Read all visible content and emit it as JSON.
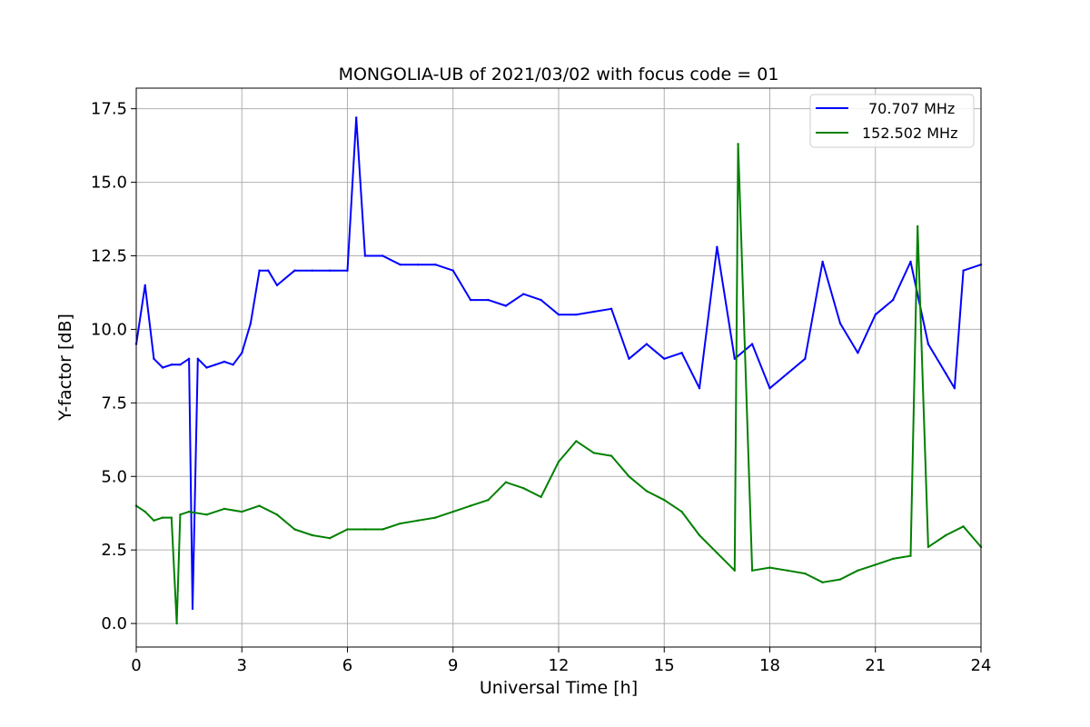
{
  "chart_data": {
    "type": "line",
    "title": "MONGOLIA-UB of 2021/03/02 with focus code = 01",
    "xlabel": "Universal Time [h]",
    "ylabel": "Y-factor [dB]",
    "xlim": [
      0,
      24
    ],
    "ylim": [
      -0.8,
      18.2
    ],
    "xticks": [
      0,
      3,
      6,
      9,
      12,
      15,
      18,
      21,
      24
    ],
    "xtick_labels": [
      "0",
      "3",
      "6",
      "9",
      "12",
      "15",
      "18",
      "21",
      "24"
    ],
    "yticks": [
      0,
      2.5,
      5,
      7.5,
      10,
      12.5,
      15,
      17.5
    ],
    "ytick_labels": [
      "0.0",
      "2.5",
      "5.0",
      "7.5",
      "10.0",
      "12.5",
      "15.0",
      "17.5"
    ],
    "grid": true,
    "legend_position": "top-right",
    "series": [
      {
        "name": "70.707 MHz",
        "color": "#0000ff",
        "x": [
          0,
          0.25,
          0.5,
          0.75,
          1.0,
          1.25,
          1.5,
          1.6,
          1.75,
          2.0,
          2.25,
          2.5,
          2.75,
          3.0,
          3.25,
          3.5,
          3.75,
          4.0,
          4.5,
          5.0,
          5.5,
          6.0,
          6.25,
          6.5,
          7.0,
          7.5,
          8.0,
          8.5,
          9.0,
          9.5,
          10.0,
          10.5,
          11.0,
          11.5,
          12.0,
          12.5,
          13.0,
          13.5,
          14.0,
          14.5,
          15.0,
          15.5,
          16.0,
          16.5,
          17.0,
          17.5,
          18.0,
          18.5,
          19.0,
          19.5,
          20.0,
          20.5,
          21.0,
          21.5,
          22.0,
          22.5,
          23.0,
          23.25,
          23.5,
          24.0
        ],
        "y": [
          9.5,
          11.5,
          9.0,
          8.7,
          8.8,
          8.8,
          9.0,
          0.5,
          9.0,
          8.7,
          8.8,
          8.9,
          8.8,
          9.2,
          10.2,
          12.0,
          12.0,
          11.5,
          12.0,
          12.0,
          12.0,
          12.0,
          17.2,
          12.5,
          12.5,
          12.2,
          12.2,
          12.2,
          12.0,
          11.0,
          11.0,
          10.8,
          11.2,
          11.0,
          10.5,
          10.5,
          10.6,
          10.7,
          9.0,
          9.5,
          9.0,
          9.2,
          8.0,
          12.8,
          9.0,
          9.5,
          8.0,
          8.5,
          9.0,
          12.3,
          10.2,
          9.2,
          10.5,
          11.0,
          12.3,
          9.5,
          8.5,
          8.0,
          12.0,
          12.2
        ]
      },
      {
        "name": "152.502 MHz",
        "color": "#008000",
        "x": [
          0,
          0.25,
          0.5,
          0.75,
          1.0,
          1.15,
          1.25,
          1.5,
          2.0,
          2.5,
          3.0,
          3.5,
          4.0,
          4.5,
          5.0,
          5.5,
          6.0,
          6.5,
          7.0,
          7.5,
          8.0,
          8.5,
          9.0,
          9.5,
          10.0,
          10.5,
          11.0,
          11.5,
          12.0,
          12.5,
          13.0,
          13.5,
          14.0,
          14.5,
          15.0,
          15.5,
          16.0,
          16.5,
          17.0,
          17.1,
          17.5,
          18.0,
          18.5,
          19.0,
          19.5,
          20.0,
          20.5,
          21.0,
          21.5,
          22.0,
          22.2,
          22.5,
          23.0,
          23.5,
          24.0
        ],
        "y": [
          4.0,
          3.8,
          3.5,
          3.6,
          3.6,
          0.0,
          3.7,
          3.8,
          3.7,
          3.9,
          3.8,
          4.0,
          3.7,
          3.2,
          3.0,
          2.9,
          3.2,
          3.2,
          3.2,
          3.4,
          3.5,
          3.6,
          3.8,
          4.0,
          4.2,
          4.8,
          4.6,
          4.3,
          5.5,
          6.2,
          5.8,
          5.7,
          5.0,
          4.5,
          4.2,
          3.8,
          3.0,
          2.4,
          1.8,
          16.3,
          1.8,
          1.9,
          1.8,
          1.7,
          1.4,
          1.5,
          1.8,
          2.0,
          2.2,
          2.3,
          13.5,
          2.6,
          3.0,
          3.3,
          2.6
        ]
      }
    ]
  }
}
